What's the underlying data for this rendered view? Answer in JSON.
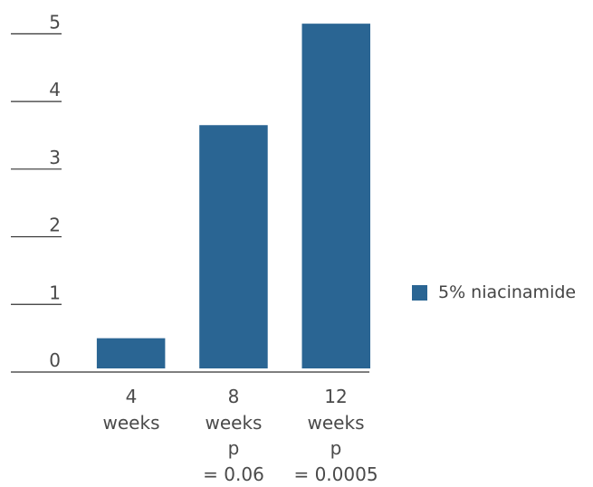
{
  "chart_data": {
    "type": "bar",
    "categories": [
      "4 weeks",
      "8 weeks",
      "12 weeks"
    ],
    "p_values": [
      "",
      "p = 0.06",
      "p = 0.0005"
    ],
    "series": [
      {
        "name": "5% niacinamide",
        "values": [
          0.5,
          3.65,
          5.15
        ],
        "color": "#2a6593"
      }
    ],
    "yticks": [
      0,
      1,
      2,
      3,
      4,
      5
    ],
    "ylim": [
      0,
      5.5
    ],
    "grid": false,
    "legend": "right"
  }
}
